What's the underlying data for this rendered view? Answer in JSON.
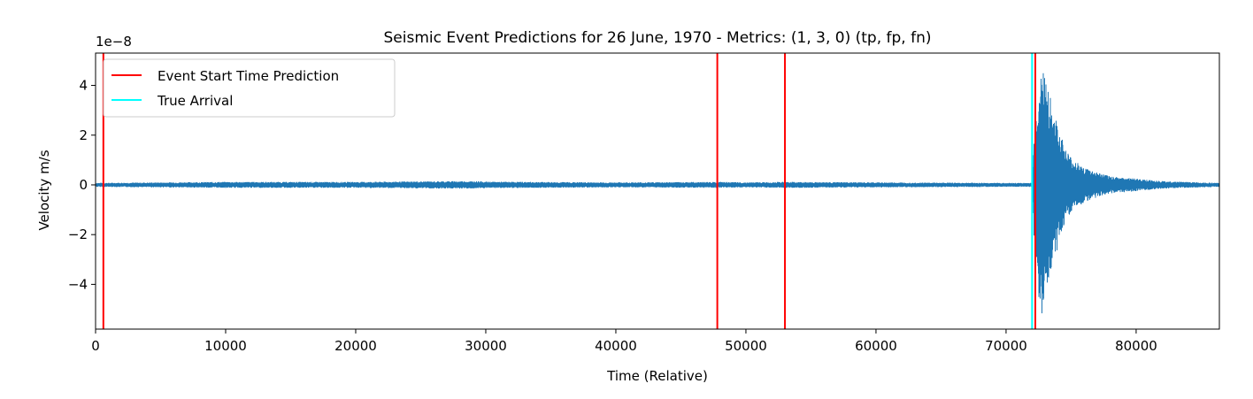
{
  "chart_data": {
    "type": "line",
    "title": "Seismic Event Predictions for 26 June, 1970 - Metrics: (1, 3, 0) (tp, fp, fn)",
    "xlabel": "Time (Relative)",
    "ylabel": "Velocity m/s",
    "y_scale_label": "1e−8",
    "xlim": [
      0,
      86400
    ],
    "ylim": [
      -5.8,
      5.3
    ],
    "y_unit_multiplier": 1e-08,
    "x_ticks": [
      0,
      10000,
      20000,
      30000,
      40000,
      50000,
      60000,
      70000,
      80000
    ],
    "x_tick_labels": [
      "0",
      "10000",
      "20000",
      "30000",
      "40000",
      "50000",
      "60000",
      "70000",
      "80000"
    ],
    "y_ticks": [
      -4,
      -2,
      0,
      2,
      4
    ],
    "y_tick_labels": [
      "−4",
      "−2",
      "0",
      "2",
      "4"
    ],
    "grid": false,
    "legend_position": "top-left",
    "series": [
      {
        "name": "",
        "color": "#1f77b4",
        "kind": "signal",
        "envelope": {
          "x": [
            0,
            5000,
            10000,
            20000,
            27500,
            29500,
            30000,
            40000,
            48000,
            50000,
            53000,
            60000,
            70000,
            72000,
            72100,
            72200,
            72500,
            72800,
            73000,
            73300,
            73600,
            74000,
            74500,
            75000,
            76000,
            77000,
            78000,
            80000,
            82000,
            85000,
            86400
          ],
          "max": [
            0.08,
            0.1,
            0.12,
            0.12,
            0.15,
            0.15,
            0.13,
            0.1,
            0.12,
            0.1,
            0.12,
            0.1,
            0.08,
            0.08,
            1.2,
            2.5,
            3.9,
            4.8,
            4.5,
            3.8,
            3.0,
            2.4,
            1.5,
            1.1,
            0.7,
            0.5,
            0.35,
            0.25,
            0.15,
            0.1,
            0.08
          ],
          "min": [
            -0.08,
            -0.1,
            -0.12,
            -0.12,
            -0.15,
            -0.15,
            -0.13,
            -0.1,
            -0.12,
            -0.1,
            -0.12,
            -0.1,
            -0.08,
            -0.08,
            -1.5,
            -3.0,
            -4.6,
            -5.3,
            -4.5,
            -3.8,
            -3.2,
            -2.5,
            -1.6,
            -1.1,
            -0.7,
            -0.5,
            -0.35,
            -0.25,
            -0.15,
            -0.1,
            -0.08
          ]
        }
      },
      {
        "name": "Event Start Time Prediction",
        "color": "#ff0000",
        "kind": "vline",
        "x": [
          600,
          47800,
          53000,
          72250
        ]
      },
      {
        "name": "True Arrival",
        "color": "#00ffff",
        "kind": "vline",
        "x": [
          72000
        ]
      }
    ]
  }
}
